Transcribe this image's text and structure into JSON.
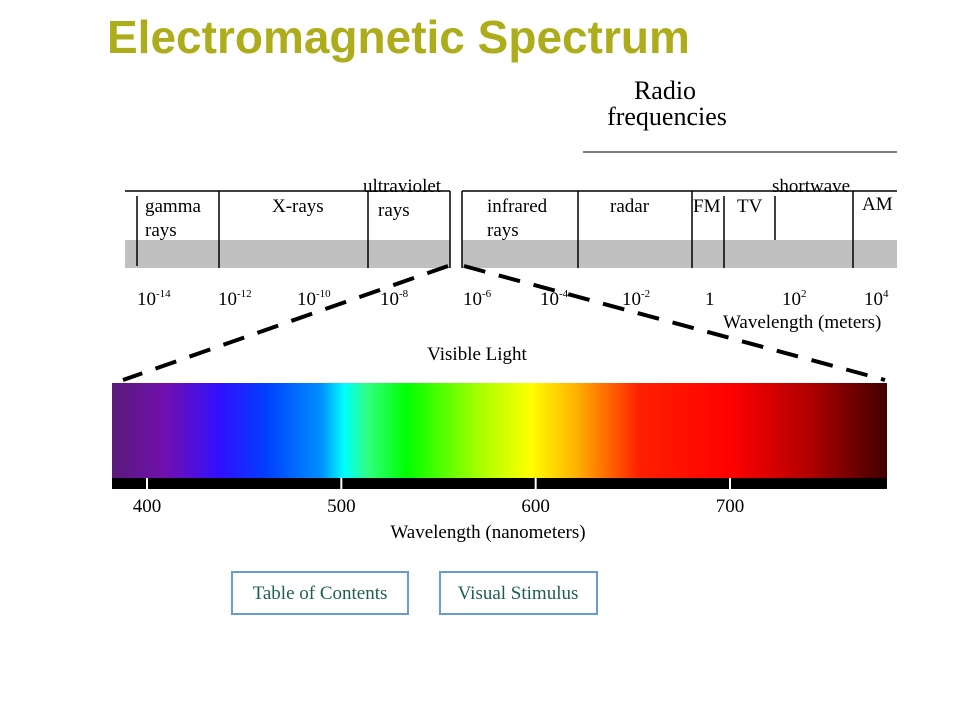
{
  "title": "Electromagnetic Spectrum",
  "radio_label": [
    "Radio",
    "frequencies"
  ],
  "bands": [
    {
      "lines": [
        "gamma",
        "rays"
      ]
    },
    {
      "lines": [
        "X-rays"
      ]
    },
    {
      "lines": [
        "ultraviolet",
        "rays"
      ]
    },
    {
      "lines": [
        "infrared",
        "rays"
      ]
    },
    {
      "lines": [
        "radar"
      ]
    },
    {
      "lines": [
        "FM"
      ]
    },
    {
      "lines": [
        "TV"
      ]
    },
    {
      "lines": [
        "shortwave"
      ]
    },
    {
      "lines": [
        "AM"
      ]
    }
  ],
  "wavelength_ticks": [
    {
      "base": "10",
      "exponent": "-14"
    },
    {
      "base": "10",
      "exponent": "-12"
    },
    {
      "base": "10",
      "exponent": "-10"
    },
    {
      "base": "10",
      "exponent": "-8"
    },
    {
      "base": "10",
      "exponent": "-6"
    },
    {
      "base": "10",
      "exponent": "-4"
    },
    {
      "base": "10",
      "exponent": "-2"
    },
    {
      "base": "1"
    },
    {
      "base": "10",
      "exponent": "2"
    },
    {
      "base": "10",
      "exponent": "4"
    }
  ],
  "wavelength_axis_label": "Wavelength (meters)",
  "visible_light_label": "Visible Light",
  "visible_ticks": [
    400,
    500,
    600,
    700
  ],
  "visible_axis_label": "Wavelength (nanometers)",
  "buttons": [
    "Table of Contents",
    "Visual Stimulus"
  ]
}
